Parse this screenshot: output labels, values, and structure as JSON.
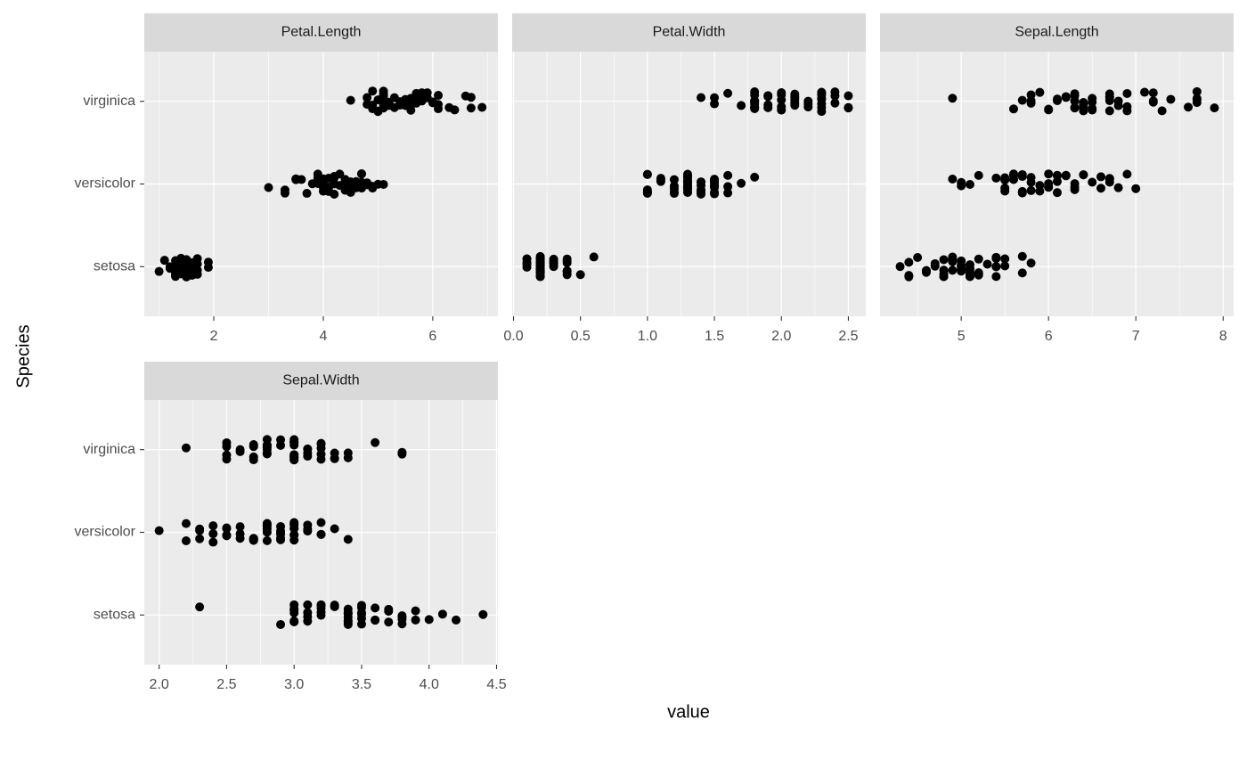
{
  "xlabel": "value",
  "ylabel": "Species",
  "species": [
    "setosa",
    "versicolor",
    "virginica"
  ],
  "chart_data": [
    {
      "type": "scatter",
      "title": "Petal.Length",
      "color": "#000000",
      "grid": true,
      "xlim": [
        0.73,
        7.19
      ],
      "xticks": [
        2,
        4,
        6
      ],
      "values": [
        [
          1.4,
          1.4,
          1.3,
          1.5,
          1.4,
          1.7,
          1.4,
          1.5,
          1.4,
          1.5,
          1.5,
          1.6,
          1.4,
          1.1,
          1.2,
          1.5,
          1.3,
          1.4,
          1.7,
          1.5,
          1.7,
          1.5,
          1.0,
          1.7,
          1.9,
          1.6,
          1.6,
          1.5,
          1.4,
          1.6,
          1.6,
          1.5,
          1.5,
          1.4,
          1.5,
          1.2,
          1.3,
          1.4,
          1.3,
          1.5,
          1.3,
          1.3,
          1.3,
          1.6,
          1.9,
          1.4,
          1.6,
          1.4,
          1.5,
          1.4
        ],
        [
          4.7,
          4.5,
          4.9,
          4.0,
          4.6,
          4.5,
          4.7,
          3.3,
          4.6,
          3.9,
          3.5,
          4.2,
          4.0,
          4.7,
          3.6,
          4.4,
          4.5,
          4.1,
          4.5,
          3.9,
          4.8,
          4.0,
          4.9,
          4.7,
          4.3,
          4.4,
          4.8,
          5.0,
          4.5,
          3.5,
          3.8,
          3.7,
          3.9,
          5.1,
          4.5,
          4.5,
          4.7,
          4.4,
          4.1,
          4.0,
          4.4,
          4.6,
          4.0,
          3.3,
          4.2,
          4.2,
          4.2,
          4.3,
          3.0,
          4.1
        ],
        [
          6.0,
          5.1,
          5.9,
          5.6,
          5.8,
          6.6,
          4.5,
          6.3,
          5.8,
          6.1,
          5.1,
          5.3,
          5.5,
          5.0,
          5.1,
          5.3,
          5.5,
          6.7,
          6.9,
          5.0,
          5.7,
          4.9,
          6.7,
          4.9,
          5.7,
          6.0,
          4.8,
          4.9,
          5.6,
          5.8,
          6.1,
          6.4,
          5.6,
          5.1,
          5.6,
          6.1,
          5.6,
          5.5,
          4.8,
          5.4,
          5.6,
          5.1,
          5.1,
          5.9,
          5.7,
          5.2,
          5.0,
          5.2,
          5.4,
          5.1
        ]
      ]
    },
    {
      "type": "scatter",
      "title": "Petal.Width",
      "color": "#000000",
      "grid": true,
      "xlim": [
        -0.01,
        2.63
      ],
      "xticks": [
        {
          "value": 0,
          "label": "0.0"
        },
        0.5,
        {
          "value": 1,
          "label": "1.0"
        },
        1.5,
        {
          "value": 2,
          "label": "2.0"
        },
        2.5
      ],
      "values": [
        [
          0.2,
          0.2,
          0.2,
          0.2,
          0.2,
          0.4,
          0.3,
          0.2,
          0.2,
          0.1,
          0.2,
          0.2,
          0.1,
          0.1,
          0.2,
          0.4,
          0.4,
          0.3,
          0.3,
          0.3,
          0.2,
          0.4,
          0.2,
          0.5,
          0.2,
          0.2,
          0.4,
          0.2,
          0.2,
          0.2,
          0.2,
          0.4,
          0.1,
          0.2,
          0.2,
          0.2,
          0.2,
          0.1,
          0.2,
          0.2,
          0.3,
          0.3,
          0.2,
          0.6,
          0.4,
          0.3,
          0.2,
          0.2,
          0.2,
          0.2
        ],
        [
          1.4,
          1.5,
          1.5,
          1.3,
          1.5,
          1.3,
          1.6,
          1.0,
          1.3,
          1.4,
          1.0,
          1.5,
          1.0,
          1.4,
          1.3,
          1.4,
          1.5,
          1.0,
          1.5,
          1.1,
          1.8,
          1.3,
          1.5,
          1.2,
          1.3,
          1.4,
          1.4,
          1.7,
          1.5,
          1.0,
          1.1,
          1.0,
          1.2,
          1.6,
          1.5,
          1.6,
          1.5,
          1.3,
          1.3,
          1.3,
          1.2,
          1.4,
          1.2,
          1.0,
          1.3,
          1.2,
          1.3,
          1.3,
          1.1,
          1.3
        ],
        [
          2.5,
          1.9,
          2.1,
          1.8,
          2.2,
          2.1,
          1.7,
          1.8,
          1.8,
          2.5,
          2.0,
          1.9,
          2.1,
          2.0,
          2.4,
          2.3,
          1.8,
          2.2,
          2.3,
          1.5,
          2.3,
          2.0,
          2.0,
          1.8,
          2.1,
          1.8,
          1.8,
          1.8,
          2.1,
          1.6,
          1.9,
          2.0,
          2.2,
          1.5,
          1.4,
          2.3,
          2.4,
          1.8,
          1.8,
          2.1,
          2.4,
          2.3,
          1.9,
          2.3,
          2.5,
          2.3,
          1.9,
          2.0,
          2.3,
          1.8
        ]
      ]
    },
    {
      "type": "scatter",
      "title": "Sepal.Length",
      "color": "#000000",
      "grid": true,
      "xlim": [
        4.07,
        8.12
      ],
      "xticks": [
        5,
        6,
        7,
        8
      ],
      "values": [
        [
          5.1,
          4.9,
          4.7,
          4.6,
          5.0,
          5.4,
          4.6,
          5.0,
          4.4,
          4.9,
          5.4,
          4.8,
          4.8,
          4.3,
          5.8,
          5.7,
          5.4,
          5.1,
          5.7,
          5.1,
          5.4,
          5.1,
          4.6,
          5.1,
          4.8,
          5.0,
          5.0,
          5.2,
          5.2,
          4.7,
          4.8,
          5.4,
          5.2,
          5.5,
          4.9,
          5.0,
          5.5,
          4.9,
          4.4,
          5.1,
          5.0,
          4.5,
          4.4,
          5.0,
          5.1,
          4.8,
          5.1,
          4.6,
          5.3,
          5.0
        ],
        [
          7.0,
          6.4,
          6.9,
          5.5,
          6.5,
          5.7,
          6.3,
          4.9,
          6.6,
          5.2,
          5.0,
          5.9,
          6.0,
          6.1,
          5.6,
          6.7,
          5.6,
          5.8,
          6.2,
          5.6,
          5.9,
          6.1,
          6.3,
          6.1,
          6.4,
          6.6,
          6.8,
          6.7,
          6.0,
          5.7,
          5.5,
          5.5,
          5.8,
          6.0,
          5.4,
          6.0,
          6.7,
          6.3,
          5.6,
          5.5,
          5.5,
          6.1,
          5.8,
          5.0,
          5.6,
          5.7,
          5.7,
          6.2,
          5.1,
          5.7
        ],
        [
          6.3,
          5.8,
          7.1,
          6.3,
          6.5,
          7.6,
          4.9,
          7.3,
          6.7,
          7.2,
          6.5,
          6.4,
          6.8,
          5.7,
          5.8,
          6.4,
          6.5,
          7.7,
          7.7,
          6.0,
          6.9,
          5.6,
          7.7,
          6.3,
          6.7,
          7.2,
          6.2,
          6.1,
          6.4,
          7.2,
          7.4,
          7.9,
          6.4,
          6.3,
          6.1,
          7.7,
          6.3,
          6.4,
          6.0,
          6.9,
          6.7,
          6.9,
          5.8,
          6.8,
          6.7,
          6.7,
          6.3,
          6.5,
          6.2,
          5.9
        ]
      ]
    },
    {
      "type": "scatter",
      "title": "Sepal.Width",
      "color": "#000000",
      "grid": true,
      "xlim": [
        1.89,
        4.51
      ],
      "xticks": [
        {
          "value": 2,
          "label": "2.0"
        },
        2.5,
        {
          "value": 3,
          "label": "3.0"
        },
        3.5,
        {
          "value": 4,
          "label": "4.0"
        },
        4.5
      ],
      "values": [
        [
          3.5,
          3.0,
          3.2,
          3.1,
          3.6,
          3.9,
          3.4,
          3.4,
          2.9,
          3.1,
          3.7,
          3.4,
          3.0,
          3.0,
          4.0,
          4.4,
          3.9,
          3.5,
          3.8,
          3.8,
          3.4,
          3.7,
          3.6,
          3.3,
          3.4,
          3.0,
          3.4,
          3.5,
          3.4,
          3.2,
          3.1,
          3.4,
          4.1,
          4.2,
          3.1,
          3.2,
          3.5,
          3.6,
          3.0,
          3.4,
          3.5,
          2.3,
          3.2,
          3.5,
          3.8,
          3.0,
          3.8,
          3.2,
          3.7,
          3.3
        ],
        [
          3.2,
          3.2,
          3.1,
          2.3,
          2.8,
          2.8,
          3.3,
          2.4,
          2.9,
          2.7,
          2.0,
          3.0,
          2.2,
          2.9,
          2.9,
          3.1,
          3.0,
          2.7,
          2.2,
          2.5,
          3.2,
          2.8,
          2.5,
          2.8,
          2.9,
          3.0,
          2.8,
          3.0,
          2.9,
          2.6,
          2.4,
          2.4,
          2.7,
          2.7,
          3.0,
          3.4,
          3.1,
          2.3,
          3.0,
          2.5,
          2.6,
          3.0,
          2.6,
          2.3,
          2.7,
          3.0,
          2.9,
          2.9,
          2.5,
          2.8
        ],
        [
          3.3,
          2.7,
          3.0,
          2.9,
          3.0,
          3.0,
          2.5,
          2.9,
          2.5,
          3.6,
          3.2,
          2.7,
          3.0,
          2.5,
          2.8,
          3.2,
          3.0,
          3.8,
          2.6,
          2.2,
          3.2,
          2.8,
          2.8,
          2.7,
          3.3,
          3.2,
          2.8,
          3.0,
          2.8,
          3.0,
          2.8,
          3.8,
          2.8,
          2.8,
          2.6,
          3.0,
          3.4,
          3.1,
          3.0,
          3.1,
          3.1,
          3.1,
          2.7,
          3.2,
          3.3,
          3.0,
          2.5,
          3.0,
          3.4,
          3.0
        ]
      ]
    }
  ]
}
